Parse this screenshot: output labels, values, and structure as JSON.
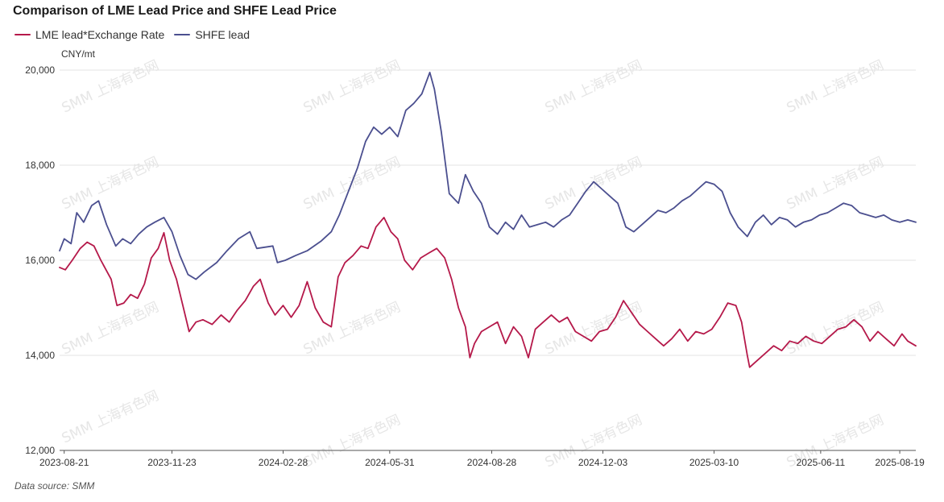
{
  "chart_data": {
    "type": "line",
    "title": "Comparison of LME Lead Price and SHFE Lead Price",
    "unit": "CNY/mt",
    "ylim": [
      12000,
      20000
    ],
    "yticks": [
      12000,
      14000,
      16000,
      18000,
      20000
    ],
    "ytick_labels": [
      "12,000",
      "14,000",
      "16,000",
      "18,000",
      "20,000"
    ],
    "xlim": [
      "2023-08-17",
      "2025-09-02"
    ],
    "xticks": [
      "2023-08-21",
      "2023-11-23",
      "2024-02-28",
      "2024-05-31",
      "2024-08-28",
      "2024-12-03",
      "2025-03-10",
      "2025-06-11",
      "2025-08-19"
    ],
    "grid": "horizontal",
    "legend_position": "top-left",
    "watermark": "SMM 上海有色网",
    "source": "Data source:  SMM",
    "series": [
      {
        "name": "LME lead*Exchange Rate",
        "color": "#b5194a",
        "points": [
          [
            "2023-08-17",
            15850
          ],
          [
            "2023-08-22",
            15800
          ],
          [
            "2023-08-28",
            16000
          ],
          [
            "2023-09-04",
            16250
          ],
          [
            "2023-09-10",
            16380
          ],
          [
            "2023-09-16",
            16300
          ],
          [
            "2023-09-22",
            16000
          ],
          [
            "2023-10-01",
            15600
          ],
          [
            "2023-10-06",
            15050
          ],
          [
            "2023-10-12",
            15100
          ],
          [
            "2023-10-18",
            15280
          ],
          [
            "2023-10-24",
            15200
          ],
          [
            "2023-10-30",
            15500
          ],
          [
            "2023-11-05",
            16050
          ],
          [
            "2023-11-11",
            16250
          ],
          [
            "2023-11-16",
            16580
          ],
          [
            "2023-11-21",
            16000
          ],
          [
            "2023-11-27",
            15600
          ],
          [
            "2023-12-03",
            15000
          ],
          [
            "2023-12-08",
            14500
          ],
          [
            "2023-12-14",
            14700
          ],
          [
            "2023-12-20",
            14750
          ],
          [
            "2023-12-28",
            14650
          ],
          [
            "2024-01-05",
            14850
          ],
          [
            "2024-01-12",
            14700
          ],
          [
            "2024-01-19",
            14950
          ],
          [
            "2024-01-26",
            15150
          ],
          [
            "2024-02-02",
            15450
          ],
          [
            "2024-02-08",
            15600
          ],
          [
            "2024-02-15",
            15100
          ],
          [
            "2024-02-21",
            14850
          ],
          [
            "2024-02-28",
            15050
          ],
          [
            "2024-03-06",
            14800
          ],
          [
            "2024-03-13",
            15050
          ],
          [
            "2024-03-20",
            15550
          ],
          [
            "2024-03-27",
            15000
          ],
          [
            "2024-04-03",
            14700
          ],
          [
            "2024-04-10",
            14600
          ],
          [
            "2024-04-16",
            15650
          ],
          [
            "2024-04-22",
            15950
          ],
          [
            "2024-04-29",
            16100
          ],
          [
            "2024-05-06",
            16300
          ],
          [
            "2024-05-12",
            16250
          ],
          [
            "2024-05-19",
            16700
          ],
          [
            "2024-05-26",
            16900
          ],
          [
            "2024-06-01",
            16600
          ],
          [
            "2024-06-07",
            16450
          ],
          [
            "2024-06-13",
            16000
          ],
          [
            "2024-06-20",
            15800
          ],
          [
            "2024-06-27",
            16050
          ],
          [
            "2024-07-04",
            16150
          ],
          [
            "2024-07-11",
            16250
          ],
          [
            "2024-07-18",
            16050
          ],
          [
            "2024-07-24",
            15600
          ],
          [
            "2024-07-30",
            15000
          ],
          [
            "2024-08-05",
            14600
          ],
          [
            "2024-08-09",
            13950
          ],
          [
            "2024-08-13",
            14250
          ],
          [
            "2024-08-19",
            14500
          ],
          [
            "2024-08-26",
            14600
          ],
          [
            "2024-09-02",
            14700
          ],
          [
            "2024-09-09",
            14250
          ],
          [
            "2024-09-16",
            14600
          ],
          [
            "2024-09-23",
            14400
          ],
          [
            "2024-09-29",
            13950
          ],
          [
            "2024-10-05",
            14550
          ],
          [
            "2024-10-12",
            14700
          ],
          [
            "2024-10-19",
            14850
          ],
          [
            "2024-10-26",
            14700
          ],
          [
            "2024-11-02",
            14800
          ],
          [
            "2024-11-09",
            14500
          ],
          [
            "2024-11-16",
            14400
          ],
          [
            "2024-11-23",
            14300
          ],
          [
            "2024-11-30",
            14500
          ],
          [
            "2024-12-07",
            14550
          ],
          [
            "2024-12-14",
            14800
          ],
          [
            "2024-12-21",
            15150
          ],
          [
            "2024-12-28",
            14900
          ],
          [
            "2025-01-04",
            14650
          ],
          [
            "2025-01-11",
            14500
          ],
          [
            "2025-01-18",
            14350
          ],
          [
            "2025-01-25",
            14200
          ],
          [
            "2025-02-01",
            14350
          ],
          [
            "2025-02-08",
            14550
          ],
          [
            "2025-02-15",
            14300
          ],
          [
            "2025-02-22",
            14500
          ],
          [
            "2025-03-01",
            14450
          ],
          [
            "2025-03-08",
            14550
          ],
          [
            "2025-03-15",
            14800
          ],
          [
            "2025-03-22",
            15100
          ],
          [
            "2025-03-29",
            15050
          ],
          [
            "2025-04-03",
            14700
          ],
          [
            "2025-04-08",
            14000
          ],
          [
            "2025-04-10",
            13750
          ],
          [
            "2025-04-17",
            13900
          ],
          [
            "2025-04-24",
            14050
          ],
          [
            "2025-05-01",
            14200
          ],
          [
            "2025-05-08",
            14100
          ],
          [
            "2025-05-15",
            14300
          ],
          [
            "2025-05-22",
            14250
          ],
          [
            "2025-05-29",
            14400
          ],
          [
            "2025-06-05",
            14300
          ],
          [
            "2025-06-12",
            14250
          ],
          [
            "2025-06-19",
            14400
          ],
          [
            "2025-06-26",
            14550
          ],
          [
            "2025-07-03",
            14600
          ],
          [
            "2025-07-10",
            14750
          ],
          [
            "2025-07-17",
            14600
          ],
          [
            "2025-07-24",
            14300
          ],
          [
            "2025-07-31",
            14500
          ],
          [
            "2025-08-07",
            14350
          ],
          [
            "2025-08-14",
            14200
          ],
          [
            "2025-08-21",
            14450
          ],
          [
            "2025-08-26",
            14300
          ],
          [
            "2025-09-02",
            14200
          ]
        ]
      },
      {
        "name": "SHFE lead",
        "color": "#4b4f8f",
        "points": [
          [
            "2023-08-17",
            16200
          ],
          [
            "2023-08-21",
            16450
          ],
          [
            "2023-08-27",
            16350
          ],
          [
            "2023-09-01",
            17000
          ],
          [
            "2023-09-07",
            16800
          ],
          [
            "2023-09-14",
            17150
          ],
          [
            "2023-09-20",
            17250
          ],
          [
            "2023-09-27",
            16750
          ],
          [
            "2023-10-05",
            16300
          ],
          [
            "2023-10-11",
            16450
          ],
          [
            "2023-10-18",
            16350
          ],
          [
            "2023-10-25",
            16550
          ],
          [
            "2023-11-01",
            16700
          ],
          [
            "2023-11-08",
            16800
          ],
          [
            "2023-11-16",
            16900
          ],
          [
            "2023-11-23",
            16600
          ],
          [
            "2023-11-30",
            16100
          ],
          [
            "2023-12-07",
            15700
          ],
          [
            "2023-12-14",
            15600
          ],
          [
            "2023-12-21",
            15750
          ],
          [
            "2024-01-01",
            15950
          ],
          [
            "2024-01-10",
            16200
          ],
          [
            "2024-01-20",
            16450
          ],
          [
            "2024-01-30",
            16600
          ],
          [
            "2024-02-05",
            16250
          ],
          [
            "2024-02-19",
            16300
          ],
          [
            "2024-02-23",
            15950
          ],
          [
            "2024-03-01",
            16000
          ],
          [
            "2024-03-10",
            16100
          ],
          [
            "2024-03-20",
            16200
          ],
          [
            "2024-04-01",
            16400
          ],
          [
            "2024-04-10",
            16600
          ],
          [
            "2024-04-17",
            16950
          ],
          [
            "2024-04-25",
            17450
          ],
          [
            "2024-05-03",
            17950
          ],
          [
            "2024-05-10",
            18500
          ],
          [
            "2024-05-17",
            18800
          ],
          [
            "2024-05-24",
            18650
          ],
          [
            "2024-05-31",
            18800
          ],
          [
            "2024-06-07",
            18600
          ],
          [
            "2024-06-14",
            19150
          ],
          [
            "2024-06-21",
            19300
          ],
          [
            "2024-06-28",
            19500
          ],
          [
            "2024-07-05",
            19950
          ],
          [
            "2024-07-09",
            19600
          ],
          [
            "2024-07-15",
            18700
          ],
          [
            "2024-07-22",
            17400
          ],
          [
            "2024-07-30",
            17200
          ],
          [
            "2024-08-05",
            17800
          ],
          [
            "2024-08-12",
            17450
          ],
          [
            "2024-08-19",
            17200
          ],
          [
            "2024-08-26",
            16700
          ],
          [
            "2024-09-02",
            16550
          ],
          [
            "2024-09-09",
            16800
          ],
          [
            "2024-09-16",
            16650
          ],
          [
            "2024-09-23",
            16950
          ],
          [
            "2024-09-30",
            16700
          ],
          [
            "2024-10-07",
            16750
          ],
          [
            "2024-10-14",
            16800
          ],
          [
            "2024-10-21",
            16700
          ],
          [
            "2024-10-28",
            16850
          ],
          [
            "2024-11-04",
            16950
          ],
          [
            "2024-11-11",
            17200
          ],
          [
            "2024-11-18",
            17450
          ],
          [
            "2024-11-25",
            17650
          ],
          [
            "2024-12-02",
            17500
          ],
          [
            "2024-12-09",
            17350
          ],
          [
            "2024-12-16",
            17200
          ],
          [
            "2024-12-23",
            16700
          ],
          [
            "2024-12-30",
            16600
          ],
          [
            "2025-01-06",
            16750
          ],
          [
            "2025-01-13",
            16900
          ],
          [
            "2025-01-20",
            17050
          ],
          [
            "2025-01-27",
            17000
          ],
          [
            "2025-02-03",
            17100
          ],
          [
            "2025-02-10",
            17250
          ],
          [
            "2025-02-17",
            17350
          ],
          [
            "2025-02-24",
            17500
          ],
          [
            "2025-03-03",
            17650
          ],
          [
            "2025-03-10",
            17600
          ],
          [
            "2025-03-17",
            17450
          ],
          [
            "2025-03-24",
            17000
          ],
          [
            "2025-03-31",
            16700
          ],
          [
            "2025-04-08",
            16500
          ],
          [
            "2025-04-15",
            16800
          ],
          [
            "2025-04-22",
            16950
          ],
          [
            "2025-04-29",
            16750
          ],
          [
            "2025-05-06",
            16900
          ],
          [
            "2025-05-13",
            16850
          ],
          [
            "2025-05-20",
            16700
          ],
          [
            "2025-05-27",
            16800
          ],
          [
            "2025-06-03",
            16850
          ],
          [
            "2025-06-10",
            16950
          ],
          [
            "2025-06-17",
            17000
          ],
          [
            "2025-06-24",
            17100
          ],
          [
            "2025-07-01",
            17200
          ],
          [
            "2025-07-08",
            17150
          ],
          [
            "2025-07-15",
            17000
          ],
          [
            "2025-07-22",
            16950
          ],
          [
            "2025-07-29",
            16900
          ],
          [
            "2025-08-05",
            16950
          ],
          [
            "2025-08-12",
            16850
          ],
          [
            "2025-08-19",
            16800
          ],
          [
            "2025-08-26",
            16850
          ],
          [
            "2025-09-02",
            16800
          ]
        ]
      }
    ]
  }
}
